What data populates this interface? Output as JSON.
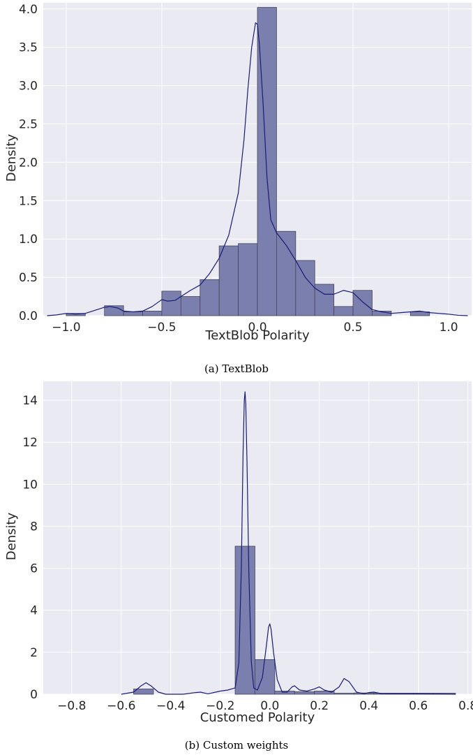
{
  "captions": {
    "a": "(a) TextBlob",
    "b": "(b) Custom weights"
  },
  "colors": {
    "plot_bg": "#eaeaf2",
    "grid": "#ffffff",
    "bar_fill": "#7b7fad",
    "bar_edge": "#444456",
    "kde_line": "#1a1a78",
    "text": "#262626"
  },
  "chart_data": [
    {
      "type": "histogram",
      "xlabel": "TextBlob Polarity",
      "ylabel": "Density",
      "xlim": [
        -1.12,
        1.12
      ],
      "ylim": [
        0,
        4.08
      ],
      "xticks": [
        -1.0,
        -0.5,
        0.0,
        0.5,
        1.0
      ],
      "xtick_labels": [
        "−1.0",
        "−0.5",
        "0.0",
        "0.5",
        "1.0"
      ],
      "yticks": [
        0,
        0.5,
        1.0,
        1.5,
        2.0,
        2.5,
        3.0,
        3.5,
        4.0
      ],
      "ytick_labels": [
        "0.0",
        "0.5",
        "1.0",
        "1.5",
        "2.0",
        "2.5",
        "3.0",
        "3.5",
        "4.0"
      ],
      "grid": true,
      "bins": [
        {
          "x0": -1.0,
          "x1": -0.9,
          "value": 0.03
        },
        {
          "x0": -0.9,
          "x1": -0.8,
          "value": 0.0
        },
        {
          "x0": -0.8,
          "x1": -0.7,
          "value": 0.13
        },
        {
          "x0": -0.7,
          "x1": -0.6,
          "value": 0.05
        },
        {
          "x0": -0.6,
          "x1": -0.5,
          "value": 0.06
        },
        {
          "x0": -0.5,
          "x1": -0.4,
          "value": 0.32
        },
        {
          "x0": -0.4,
          "x1": -0.3,
          "value": 0.25
        },
        {
          "x0": -0.3,
          "x1": -0.2,
          "value": 0.47
        },
        {
          "x0": -0.2,
          "x1": -0.1,
          "value": 0.91
        },
        {
          "x0": -0.1,
          "x1": 0.0,
          "value": 0.94
        },
        {
          "x0": 0.0,
          "x1": 0.1,
          "value": 4.02
        },
        {
          "x0": 0.1,
          "x1": 0.2,
          "value": 1.1
        },
        {
          "x0": 0.2,
          "x1": 0.3,
          "value": 0.72
        },
        {
          "x0": 0.3,
          "x1": 0.4,
          "value": 0.41
        },
        {
          "x0": 0.4,
          "x1": 0.5,
          "value": 0.12
        },
        {
          "x0": 0.5,
          "x1": 0.6,
          "value": 0.33
        },
        {
          "x0": 0.6,
          "x1": 0.7,
          "value": 0.06
        },
        {
          "x0": 0.7,
          "x1": 0.8,
          "value": 0.0
        },
        {
          "x0": 0.8,
          "x1": 0.9,
          "value": 0.05
        }
      ],
      "kde": {
        "x": [
          -1.1,
          -1.05,
          -1.0,
          -0.95,
          -0.9,
          -0.85,
          -0.8,
          -0.77,
          -0.73,
          -0.7,
          -0.65,
          -0.6,
          -0.55,
          -0.5,
          -0.47,
          -0.43,
          -0.4,
          -0.35,
          -0.3,
          -0.25,
          -0.2,
          -0.15,
          -0.1,
          -0.07,
          -0.05,
          -0.03,
          -0.01,
          0.0,
          0.01,
          0.03,
          0.05,
          0.07,
          0.1,
          0.15,
          0.2,
          0.25,
          0.3,
          0.35,
          0.4,
          0.45,
          0.5,
          0.55,
          0.6,
          0.65,
          0.7,
          0.75,
          0.8,
          0.85,
          0.9,
          0.95,
          1.0,
          1.05,
          1.1
        ],
        "y": [
          0.0,
          0.01,
          0.03,
          0.02,
          0.03,
          0.07,
          0.11,
          0.12,
          0.1,
          0.06,
          0.05,
          0.06,
          0.12,
          0.21,
          0.19,
          0.2,
          0.25,
          0.33,
          0.4,
          0.55,
          0.75,
          1.05,
          1.6,
          2.3,
          2.95,
          3.5,
          3.82,
          3.8,
          3.55,
          2.75,
          1.8,
          1.25,
          1.08,
          0.92,
          0.72,
          0.5,
          0.36,
          0.28,
          0.28,
          0.33,
          0.3,
          0.18,
          0.08,
          0.05,
          0.03,
          0.04,
          0.05,
          0.06,
          0.04,
          0.03,
          0.02,
          0.005,
          0.0
        ]
      }
    },
    {
      "type": "histogram",
      "xlabel": "Customed Polarity",
      "ylabel": "Density",
      "xlim": [
        -0.915,
        0.815
      ],
      "ylim": [
        0,
        14.9
      ],
      "xticks": [
        -0.8,
        -0.6,
        -0.4,
        -0.2,
        0.0,
        0.2,
        0.4,
        0.6,
        0.8
      ],
      "xtick_labels": [
        "−0.8",
        "−0.6",
        "−0.4",
        "−0.2",
        "0.0",
        "0.2",
        "0.4",
        "0.6",
        "0.8"
      ],
      "yticks": [
        0,
        2,
        4,
        6,
        8,
        10,
        12,
        14
      ],
      "ytick_labels": [
        "0",
        "2",
        "4",
        "6",
        "8",
        "10",
        "12",
        "14"
      ],
      "grid": true,
      "bins": [
        {
          "x0": -0.55,
          "x1": -0.47,
          "value": 0.25
        },
        {
          "x0": -0.14,
          "x1": -0.06,
          "value": 7.05
        },
        {
          "x0": -0.06,
          "x1": 0.02,
          "value": 1.65
        },
        {
          "x0": 0.02,
          "x1": 0.1,
          "value": 0.15
        },
        {
          "x0": 0.1,
          "x1": 0.18,
          "value": 0.12
        },
        {
          "x0": 0.18,
          "x1": 0.26,
          "value": 0.15
        },
        {
          "x0": 0.26,
          "x1": 0.34,
          "value": 0.05
        },
        {
          "x0": 0.34,
          "x1": 0.42,
          "value": 0.06
        },
        {
          "x0": 0.42,
          "x1": 0.5,
          "value": 0.05
        },
        {
          "x0": 0.5,
          "x1": 0.58,
          "value": 0.05
        },
        {
          "x0": 0.58,
          "x1": 0.66,
          "value": 0.05
        },
        {
          "x0": 0.66,
          "x1": 0.75,
          "value": 0.05
        }
      ],
      "kde": {
        "x": [
          -0.6,
          -0.55,
          -0.52,
          -0.5,
          -0.48,
          -0.45,
          -0.42,
          -0.35,
          -0.3,
          -0.28,
          -0.25,
          -0.2,
          -0.17,
          -0.14,
          -0.125,
          -0.115,
          -0.108,
          -0.103,
          -0.1,
          -0.097,
          -0.092,
          -0.085,
          -0.075,
          -0.065,
          -0.05,
          -0.03,
          -0.015,
          -0.005,
          0.0,
          0.005,
          0.015,
          0.03,
          0.05,
          0.07,
          0.09,
          0.1,
          0.12,
          0.15,
          0.18,
          0.2,
          0.22,
          0.25,
          0.28,
          0.3,
          0.32,
          0.35,
          0.38,
          0.4,
          0.42,
          0.45,
          0.5,
          0.6,
          0.7,
          0.75
        ],
        "y": [
          0.0,
          0.1,
          0.4,
          0.55,
          0.4,
          0.1,
          0.0,
          0.0,
          0.08,
          0.1,
          0.02,
          0.15,
          0.2,
          0.3,
          1.5,
          6.0,
          11.5,
          14.0,
          14.4,
          13.8,
          11.0,
          6.0,
          1.6,
          0.3,
          0.2,
          0.8,
          2.2,
          3.2,
          3.35,
          3.1,
          2.0,
          0.7,
          0.1,
          0.1,
          0.35,
          0.4,
          0.2,
          0.15,
          0.25,
          0.35,
          0.2,
          0.1,
          0.35,
          0.75,
          0.6,
          0.1,
          0.02,
          0.08,
          0.1,
          0.03,
          0.02,
          0.02,
          0.01,
          0.0
        ]
      }
    }
  ]
}
